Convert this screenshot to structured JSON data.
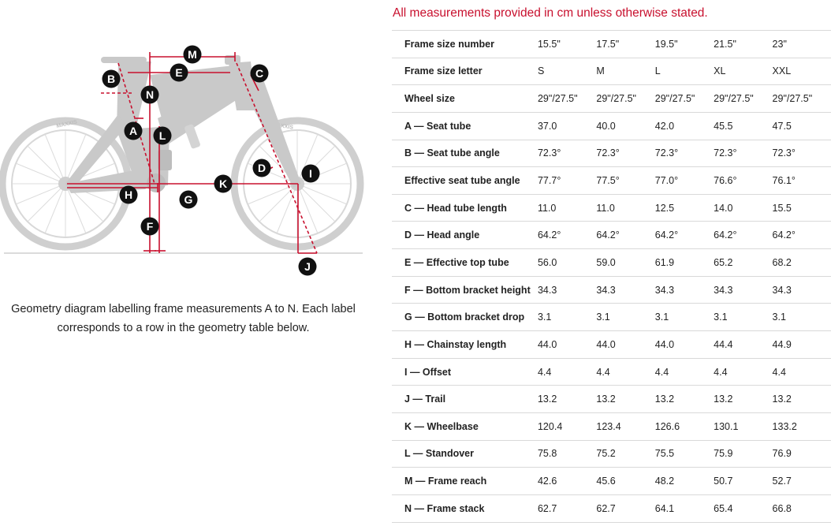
{
  "note": "All measurements provided in cm unless otherwise stated.",
  "caption": "Geometry diagram labelling frame measurements A to N. Each label corresponds to a row in the geometry table below.",
  "diagram": {
    "labels": [
      "A",
      "B",
      "C",
      "D",
      "E",
      "F",
      "G",
      "H",
      "I",
      "J",
      "K",
      "L",
      "M",
      "N"
    ],
    "tire_brand": "MAXXIS"
  },
  "table": {
    "rows": [
      {
        "label": "Frame size number",
        "values": [
          "15.5\"",
          "17.5\"",
          "19.5\"",
          "21.5\"",
          "23\""
        ]
      },
      {
        "label": "Frame size letter",
        "values": [
          "S",
          "M",
          "L",
          "XL",
          "XXL"
        ]
      },
      {
        "label": "Wheel size",
        "values": [
          "29\"/27.5\"",
          "29\"/27.5\"",
          "29\"/27.5\"",
          "29\"/27.5\"",
          "29\"/27.5\""
        ]
      },
      {
        "label": "A — Seat tube",
        "values": [
          "37.0",
          "40.0",
          "42.0",
          "45.5",
          "47.5"
        ]
      },
      {
        "label": "B — Seat tube angle",
        "values": [
          "72.3°",
          "72.3°",
          "72.3°",
          "72.3°",
          "72.3°"
        ]
      },
      {
        "label": "Effective seat tube angle",
        "values": [
          "77.7°",
          "77.5°",
          "77.0°",
          "76.6°",
          "76.1°"
        ]
      },
      {
        "label": "C — Head tube length",
        "values": [
          "11.0",
          "11.0",
          "12.5",
          "14.0",
          "15.5"
        ]
      },
      {
        "label": "D — Head angle",
        "values": [
          "64.2°",
          "64.2°",
          "64.2°",
          "64.2°",
          "64.2°"
        ]
      },
      {
        "label": "E — Effective top tube",
        "values": [
          "56.0",
          "59.0",
          "61.9",
          "65.2",
          "68.2"
        ]
      },
      {
        "label": "F — Bottom bracket height",
        "values": [
          "34.3",
          "34.3",
          "34.3",
          "34.3",
          "34.3"
        ]
      },
      {
        "label": "G — Bottom bracket drop",
        "values": [
          "3.1",
          "3.1",
          "3.1",
          "3.1",
          "3.1"
        ]
      },
      {
        "label": "H — Chainstay length",
        "values": [
          "44.0",
          "44.0",
          "44.0",
          "44.4",
          "44.9"
        ]
      },
      {
        "label": "I — Offset",
        "values": [
          "4.4",
          "4.4",
          "4.4",
          "4.4",
          "4.4"
        ]
      },
      {
        "label": "J — Trail",
        "values": [
          "13.2",
          "13.2",
          "13.2",
          "13.2",
          "13.2"
        ]
      },
      {
        "label": "K — Wheelbase",
        "values": [
          "120.4",
          "123.4",
          "126.6",
          "130.1",
          "133.2"
        ]
      },
      {
        "label": "L — Standover",
        "values": [
          "75.8",
          "75.2",
          "75.5",
          "75.9",
          "76.9"
        ]
      },
      {
        "label": "M — Frame reach",
        "values": [
          "42.6",
          "45.6",
          "48.2",
          "50.7",
          "52.7"
        ]
      },
      {
        "label": "N — Frame stack",
        "values": [
          "62.7",
          "62.7",
          "64.1",
          "65.4",
          "66.8"
        ]
      }
    ]
  },
  "colors": {
    "accent": "#c8102e",
    "bike": "#c9c9c9",
    "badge": "#111111"
  }
}
